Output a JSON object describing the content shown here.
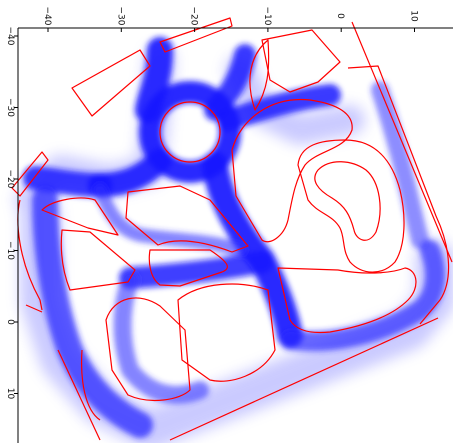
{
  "chart_data": {
    "type": "scatter",
    "title": "",
    "xlabel": "",
    "ylabel": "",
    "x_ticks": [
      "−40",
      "−30",
      "−20",
      "−10",
      "0",
      "10"
    ],
    "y_ticks": [
      "−40",
      "−30",
      "−20",
      "−10",
      "0",
      "10"
    ],
    "x_tick_values": [
      -40,
      -30,
      -20,
      -10,
      0,
      10
    ],
    "y_tick_values": [
      -40,
      -30,
      -20,
      -10,
      0,
      10
    ],
    "xlim": [
      -44.5,
      14.5
    ],
    "ylim": [
      -41.7,
      15.0
    ],
    "grid": false,
    "colors": {
      "trajectories": "#1f1fff",
      "road_boundaries": "#ff0000"
    },
    "description_tags": [
      "vehicle-trajectories-icon",
      "road-boundary-icon"
    ]
  }
}
